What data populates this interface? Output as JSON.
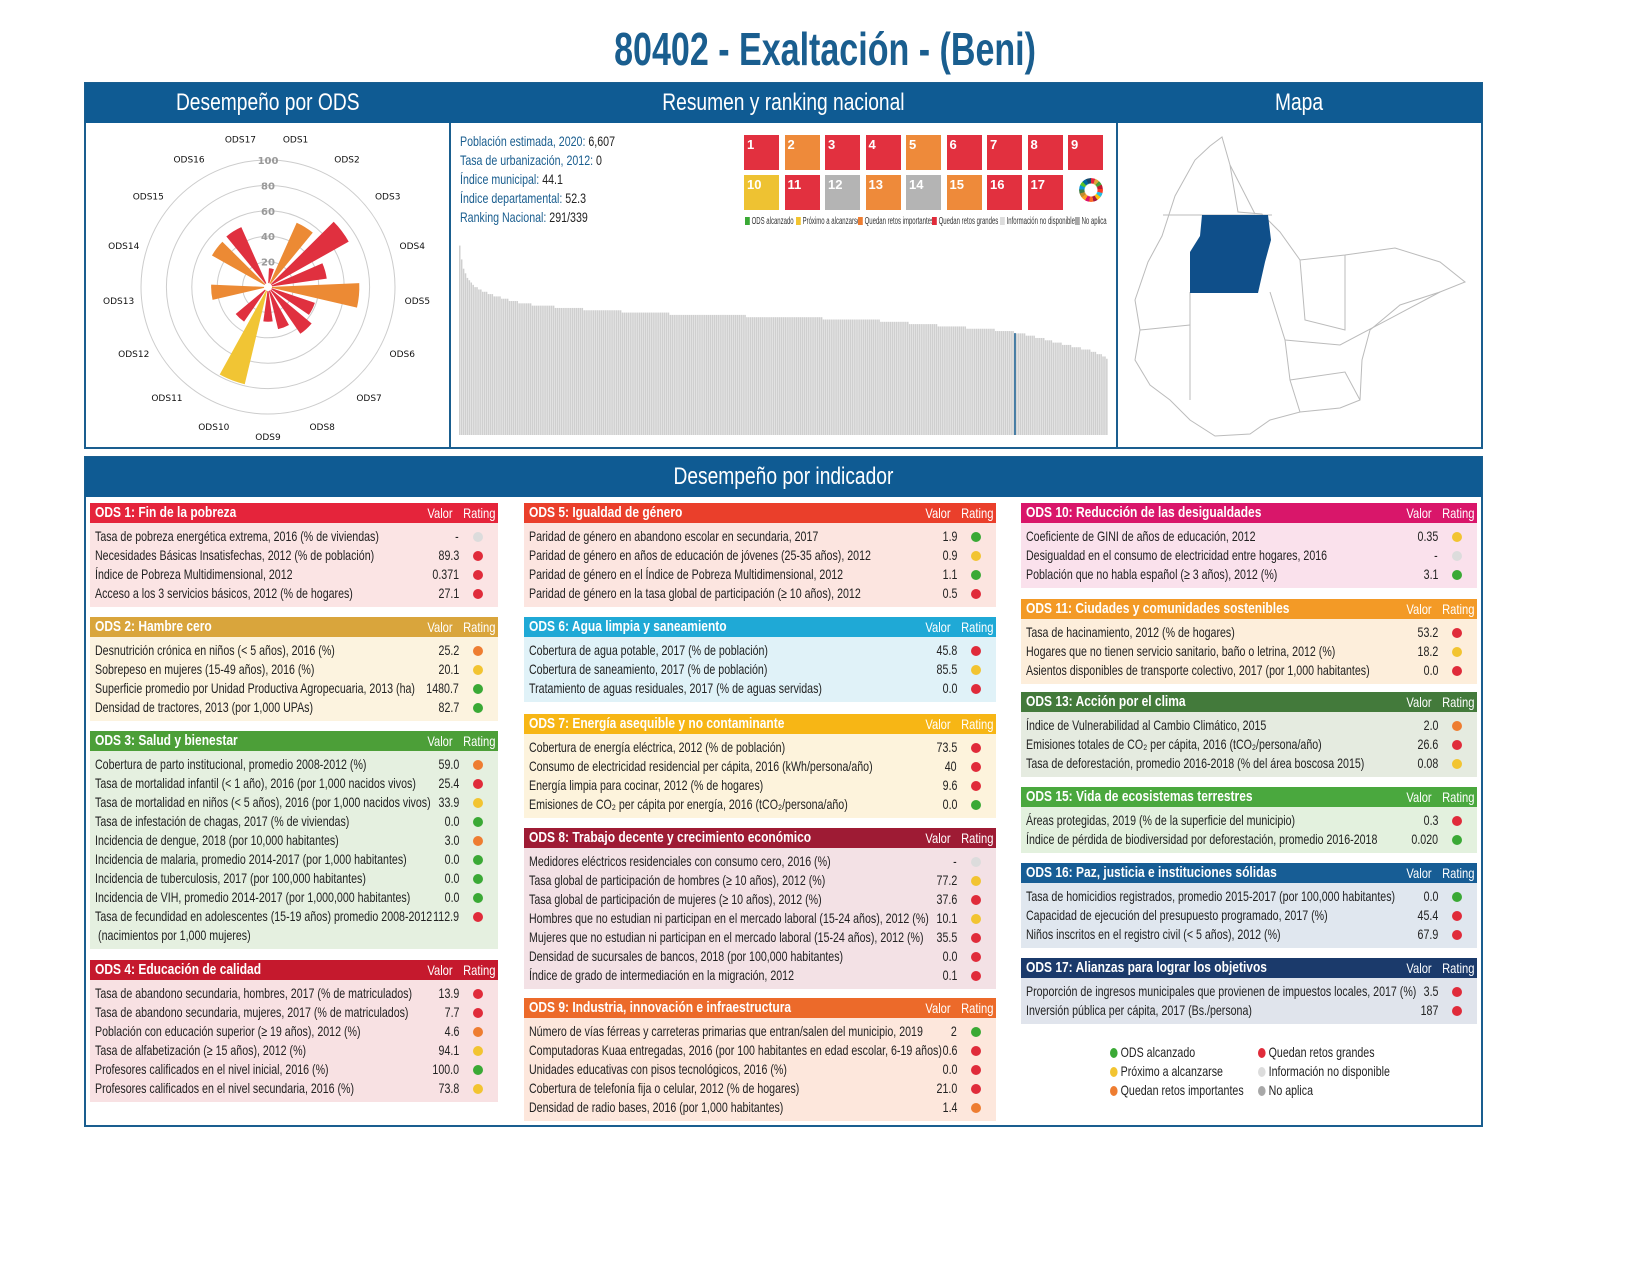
{
  "title": "80402 - Exaltación - (Beni)",
  "panels": {
    "ods": "Desempeño por ODS",
    "summary": "Resumen y ranking nacional",
    "map": "Mapa",
    "indicators": "Desempeño por indicador"
  },
  "summary": [
    {
      "label": "Población estimada, 2020:",
      "value": "6,607"
    },
    {
      "label": "Tasa de urbanización, 2012:",
      "value": "0"
    },
    {
      "label": "Índice municipal:",
      "value": "44.1"
    },
    {
      "label": "Índice departamental:",
      "value": "52.3"
    },
    {
      "label": "Ranking Nacional:",
      "value": "291/339"
    }
  ],
  "rating_colors": {
    "g": "#3aa935",
    "y": "#f2c431",
    "o": "#ee7d31",
    "r": "#e02b3a",
    "n": "#dcdcdc",
    "a": "#a8a8a8"
  },
  "ods_icons": [
    {
      "n": "1",
      "color": "#e2303f"
    },
    {
      "n": "2",
      "color": "#ee8a3a"
    },
    {
      "n": "3",
      "color": "#e2303f"
    },
    {
      "n": "4",
      "color": "#e2303f"
    },
    {
      "n": "5",
      "color": "#ee8a3a"
    },
    {
      "n": "6",
      "color": "#e2303f"
    },
    {
      "n": "7",
      "color": "#e2303f"
    },
    {
      "n": "8",
      "color": "#e2303f"
    },
    {
      "n": "9",
      "color": "#e2303f"
    },
    {
      "n": "10",
      "color": "#eec232"
    },
    {
      "n": "11",
      "color": "#e2303f"
    },
    {
      "n": "12",
      "color": "#b4b4b4"
    },
    {
      "n": "13",
      "color": "#ee8a3a"
    },
    {
      "n": "14",
      "color": "#b4b4b4"
    },
    {
      "n": "15",
      "color": "#ee8a3a"
    },
    {
      "n": "16",
      "color": "#e2303f"
    },
    {
      "n": "17",
      "color": "#e2303f"
    }
  ],
  "icon_legend": [
    {
      "label": "ODS alcanzado",
      "r": "g"
    },
    {
      "label": "Próximo a alcanzarse",
      "r": "y"
    },
    {
      "label": "Quedan retos importantes",
      "r": "o"
    },
    {
      "label": "Quedan retos grandes",
      "r": "r"
    },
    {
      "label": "Información no disponible",
      "r": "n"
    },
    {
      "label": "No aplica",
      "r": "a"
    }
  ],
  "chart_data": [
    {
      "type": "polar-bar",
      "categories": [
        "ODS1",
        "ODS2",
        "ODS3",
        "ODS4",
        "ODS5",
        "ODS6",
        "ODS7",
        "ODS8",
        "ODS9",
        "ODS10",
        "ODS11",
        "ODS12",
        "ODS13",
        "ODS14",
        "ODS15",
        "ODS16",
        "ODS17"
      ],
      "values": [
        12,
        54,
        72,
        45,
        71,
        37,
        43,
        32,
        25,
        78,
        31,
        0,
        43,
        0,
        49,
        50,
        0
      ],
      "ratings": [
        "r",
        "o",
        "r",
        "r",
        "o",
        "r",
        "r",
        "r",
        "r",
        "y",
        "r",
        "a",
        "o",
        "n",
        "o",
        "r",
        "r"
      ],
      "rticks": [
        20,
        40,
        60,
        80,
        100
      ],
      "rlim": [
        0,
        100
      ],
      "grid": true
    },
    {
      "type": "bar",
      "title": "",
      "highlight_rank": 291,
      "ylim": [
        0,
        100
      ],
      "values": [
        82,
        76,
        72,
        70,
        68,
        67,
        66,
        65,
        64,
        64,
        63,
        63,
        62,
        62,
        62,
        61,
        61,
        61,
        60,
        60,
        60,
        60,
        59,
        59,
        59,
        59,
        58,
        58,
        58,
        58,
        58,
        57,
        57,
        57,
        57,
        57,
        57,
        57,
        56,
        56,
        56,
        56,
        56,
        56,
        56,
        56,
        56,
        56,
        56,
        56,
        55,
        55,
        55,
        55,
        55,
        55,
        55,
        55,
        55,
        55,
        55,
        55,
        55,
        55,
        55,
        54,
        54,
        54,
        54,
        54,
        54,
        54,
        54,
        54,
        54,
        54,
        54,
        54,
        54,
        54,
        54,
        54,
        54,
        54,
        54,
        53,
        53,
        53,
        53,
        53,
        53,
        53,
        53,
        53,
        53,
        53,
        53,
        53,
        53,
        53,
        53,
        53,
        53,
        53,
        53,
        53,
        53,
        53,
        53,
        53,
        52,
        52,
        52,
        52,
        52,
        52,
        52,
        52,
        52,
        52,
        52,
        52,
        52,
        52,
        52,
        52,
        52,
        52,
        52,
        52,
        52,
        52,
        52,
        52,
        52,
        52,
        52,
        52,
        52,
        52,
        52,
        52,
        52,
        52,
        52,
        52,
        52,
        52,
        52,
        52,
        51,
        51,
        51,
        51,
        51,
        51,
        51,
        51,
        51,
        51,
        51,
        51,
        51,
        51,
        51,
        51,
        51,
        51,
        51,
        51,
        51,
        51,
        51,
        51,
        51,
        51,
        51,
        51,
        51,
        51,
        51,
        51,
        51,
        51,
        51,
        51,
        51,
        51,
        51,
        51,
        50,
        50,
        50,
        50,
        50,
        50,
        50,
        50,
        50,
        50,
        50,
        50,
        50,
        50,
        50,
        50,
        50,
        50,
        50,
        50,
        50,
        50,
        50,
        50,
        50,
        50,
        50,
        50,
        50,
        50,
        49,
        49,
        49,
        49,
        49,
        49,
        49,
        49,
        49,
        49,
        49,
        49,
        49,
        49,
        49,
        48,
        48,
        48,
        48,
        48,
        48,
        48,
        48,
        48,
        48,
        48,
        48,
        48,
        48,
        48,
        47,
        47,
        47,
        47,
        47,
        47,
        47,
        47,
        47,
        47,
        47,
        47,
        47,
        47,
        47,
        46,
        46,
        46,
        46,
        46,
        46,
        46,
        46,
        46,
        46,
        46,
        46,
        46,
        46,
        46,
        45,
        45,
        45,
        45,
        45,
        45,
        45,
        45,
        45,
        45,
        44.1,
        44,
        44,
        44,
        44,
        44,
        43,
        43,
        43,
        43,
        43,
        42,
        42,
        42,
        42,
        42,
        41,
        41,
        41,
        41,
        40,
        40,
        40,
        40,
        40,
        39,
        39,
        39,
        39,
        39,
        38,
        38,
        38,
        38,
        38,
        37,
        37,
        37,
        37,
        37,
        36,
        36,
        36,
        35,
        35,
        35,
        34,
        34,
        33
      ]
    }
  ],
  "table_headers": {
    "value": "Valor",
    "rating": "Rating"
  },
  "sections": [
    {
      "title": "ODS 1: Fin de la pobreza",
      "color": "#e5243b",
      "bg": "#fbe4e4",
      "rows": [
        {
          "label": "Tasa de pobreza energética extrema, 2016 (% de viviendas)",
          "value": "-",
          "r": "n"
        },
        {
          "label": "Necesidades Básicas Insatisfechas, 2012 (% de población)",
          "value": "89.3",
          "r": "r"
        },
        {
          "label": "Índice de Pobreza Multidimensional, 2012",
          "value": "0.371",
          "r": "r"
        },
        {
          "label": "Acceso a los 3 servicios básicos, 2012 (% de hogares)",
          "value": "27.1",
          "r": "r"
        }
      ]
    },
    {
      "title": "ODS 2: Hambre cero",
      "color": "#d9a53c",
      "bg": "#fcf3df",
      "rows": [
        {
          "label": "Desnutrición crónica en niños (< 5 años), 2016 (%)",
          "value": "25.2",
          "r": "o"
        },
        {
          "label": "Sobrepeso en mujeres (15-49 años), 2016 (%)",
          "value": "20.1",
          "r": "y"
        },
        {
          "label": "Superficie promedio por Unidad Productiva Agropecuaria, 2013 (ha)",
          "value": "1480.7",
          "r": "g"
        },
        {
          "label": "Densidad de tractores, 2013 (por 1,000 UPAs)",
          "value": "82.7",
          "r": "g"
        }
      ]
    },
    {
      "title": "ODS 3: Salud y bienestar",
      "color": "#4c9f38",
      "bg": "#e5f0e0",
      "rows": [
        {
          "label": "Cobertura de parto institucional, promedio 2008-2012 (%)",
          "value": "59.0",
          "r": "o"
        },
        {
          "label": "Tasa de mortalidad infantil (< 1 año), 2016 (por 1,000 nacidos vivos)",
          "value": "25.4",
          "r": "r"
        },
        {
          "label": "Tasa de mortalidad en niños (< 5 años), 2016 (por 1,000 nacidos vivos)",
          "value": "33.9",
          "r": "y"
        },
        {
          "label": "Tasa de infestación de chagas, 2017 (% de viviendas)",
          "value": "0.0",
          "r": "g"
        },
        {
          "label": "Incidencia de dengue, 2018 (por 10,000 habitantes)",
          "value": "3.0",
          "r": "o"
        },
        {
          "label": "Incidencia de malaria, promedio 2014-2017 (por 1,000 habitantes)",
          "value": "0.0",
          "r": "g"
        },
        {
          "label": "Incidencia de tuberculosis, 2017 (por 100,000 habitantes)",
          "value": "0.0",
          "r": "g"
        },
        {
          "label": "Incidencia de VIH, promedio 2014-2017 (por 1,000,000 habitantes)",
          "value": "0.0",
          "r": "g"
        },
        {
          "label": "Tasa de fecundidad en adolescentes (15-19 años) promedio 2008-2012",
          "label2": "(nacimientos por 1,000 mujeres)",
          "value": "112.9",
          "r": "r"
        }
      ]
    },
    {
      "title": "ODS 4: Educación de calidad",
      "color": "#c5192d",
      "bg": "#f8e1e3",
      "rows": [
        {
          "label": "Tasa de abandono secundaria, hombres, 2017 (% de matriculados)",
          "value": "13.9",
          "r": "r"
        },
        {
          "label": "Tasa de abandono secundaria, mujeres, 2017 (% de matriculados)",
          "value": "7.7",
          "r": "r"
        },
        {
          "label": "Población con educación superior (≥ 19 años), 2012 (%)",
          "value": "4.6",
          "r": "o"
        },
        {
          "label": "Tasa de alfabetización (≥ 15 años), 2012 (%)",
          "value": "94.1",
          "r": "y"
        },
        {
          "label": "Profesores calificados en el nivel inicial, 2016 (%)",
          "value": "100.0",
          "r": "g"
        },
        {
          "label": "Profesores calificados en el nivel secundaria, 2016 (%)",
          "value": "73.8",
          "r": "y"
        }
      ]
    },
    {
      "title": "ODS 5: Igualdad de género",
      "color": "#ea3f2b",
      "bg": "#fce5e0",
      "rows": [
        {
          "label": "Paridad de género en abandono escolar en secundaria, 2017",
          "value": "1.9",
          "r": "g"
        },
        {
          "label": "Paridad de género en años de educación de jóvenes (25-35 años), 2012",
          "value": "0.9",
          "r": "y"
        },
        {
          "label": "Paridad de género en el Índice de Pobreza Multidimensional, 2012",
          "value": "1.1",
          "r": "g"
        },
        {
          "label": "Paridad de género en la tasa global de participación (≥ 10 años), 2012",
          "value": "0.5",
          "r": "r"
        }
      ]
    },
    {
      "title": "ODS 6: Agua limpia y saneamiento",
      "color": "#1fa9d6",
      "bg": "#e0f2f8",
      "rows": [
        {
          "label": "Cobertura de agua potable, 2017 (% de población)",
          "value": "45.8",
          "r": "r"
        },
        {
          "label": "Cobertura de saneamiento, 2017 (% de población)",
          "value": "85.5",
          "r": "y"
        },
        {
          "label": "Tratamiento de aguas residuales, 2017 (% de aguas servidas)",
          "value": "0.0",
          "r": "r"
        }
      ]
    },
    {
      "title": "ODS 7: Energía asequible y no contaminante",
      "color": "#f7b615",
      "bg": "#fdf3dc",
      "rows": [
        {
          "label": "Cobertura de energía eléctrica, 2012 (% de población)",
          "value": "73.5",
          "r": "r"
        },
        {
          "label": "Consumo de electricidad residencial per cápita, 2016 (kWh/persona/año)",
          "value": "40",
          "r": "r"
        },
        {
          "label": "Energía limpia para cocinar, 2012 (% de hogares)",
          "value": "9.6",
          "r": "r"
        },
        {
          "label": "Emisiones de CO₂ per cápita por energía, 2016 (tCO₂/persona/año)",
          "value": "0.0",
          "r": "g"
        }
      ]
    },
    {
      "title": "ODS 8: Trabajo decente y crecimiento económico",
      "color": "#9e1b34",
      "bg": "#f3e1e5",
      "rows": [
        {
          "label": "Medidores eléctricos residenciales con consumo cero, 2016 (%)",
          "value": "-",
          "r": "n"
        },
        {
          "label": "Tasa global de participación de hombres (≥ 10 años), 2012 (%)",
          "value": "77.2",
          "r": "y"
        },
        {
          "label": "Tasa global de participación de mujeres (≥ 10 años), 2012 (%)",
          "value": "37.6",
          "r": "r"
        },
        {
          "label": "Hombres que no estudian ni participan en el mercado laboral (15-24 años), 2012 (%)",
          "value": "10.1",
          "r": "y"
        },
        {
          "label": "Mujeres que no estudian ni participan en el mercado laboral (15-24 años), 2012 (%)",
          "value": "35.5",
          "r": "r"
        },
        {
          "label": "Densidad de sucursales de bancos, 2018 (por 100,000 habitantes)",
          "value": "0.0",
          "r": "r"
        },
        {
          "label": "Índice de grado de intermediación en la migración, 2012",
          "value": "0.1",
          "r": "r"
        }
      ]
    },
    {
      "title": "ODS 9: Industria, innovación e infraestructura",
      "color": "#ec6a2a",
      "bg": "#fde7dc",
      "rows": [
        {
          "label": "Número de vías férreas y carreteras primarias que entran/salen del municipio, 2019",
          "value": "2",
          "r": "g"
        },
        {
          "label": "Computadoras Kuaa entregadas, 2016 (por 100 habitantes en edad escolar, 6-19 años)",
          "value": "0.6",
          "r": "r"
        },
        {
          "label": "Unidades educativas con pisos tecnológicos, 2016 (%)",
          "value": "0.0",
          "r": "r"
        },
        {
          "label": "Cobertura de telefonía fija o celular, 2012 (% de hogares)",
          "value": "21.0",
          "r": "r"
        },
        {
          "label": "Densidad de radio bases, 2016 (por 1,000 habitantes)",
          "value": "1.4",
          "r": "o"
        }
      ]
    },
    {
      "title": "ODS 10: Reducción de las desigualdades",
      "color": "#d9166a",
      "bg": "#fae1ec",
      "rows": [
        {
          "label": "Coeficiente de GINI de años de educación, 2012",
          "value": "0.35",
          "r": "y"
        },
        {
          "label": "Desigualdad en el consumo de electricidad entre hogares, 2016",
          "value": "-",
          "r": "n"
        },
        {
          "label": "Población que no habla español (≥ 3 años), 2012 (%)",
          "value": "3.1",
          "r": "g"
        }
      ]
    },
    {
      "title": "ODS 11: Ciudades y comunidades sostenibles",
      "color": "#f39a26",
      "bg": "#fdeedb",
      "rows": [
        {
          "label": "Tasa de hacinamiento, 2012 (% de hogares)",
          "value": "53.2",
          "r": "r"
        },
        {
          "label": "Hogares que no tienen servicio sanitario, baño o letrina, 2012 (%)",
          "value": "18.2",
          "r": "y"
        },
        {
          "label": "Asientos disponibles de transporte colectivo, 2017 (por 1,000 habitantes)",
          "value": "0.0",
          "r": "r"
        }
      ]
    },
    {
      "title": "ODS 13: Acción por el clima",
      "color": "#437a3b",
      "bg": "#e5ebe0",
      "rows": [
        {
          "label": "Índice de Vulnerabilidad al Cambio Climático, 2015",
          "value": "2.0",
          "r": "o"
        },
        {
          "label": "Emisiones totales de CO₂ per cápita, 2016 (tCO₂/persona/año)",
          "value": "26.6",
          "r": "r"
        },
        {
          "label": "Tasa de deforestación, promedio 2016-2018 (% del área boscosa 2015)",
          "value": "0.08",
          "r": "y"
        }
      ]
    },
    {
      "title": "ODS 15: Vida de ecosistemas terrestres",
      "color": "#4aa83e",
      "bg": "#e3f1de",
      "rows": [
        {
          "label": "Áreas protegidas, 2019 (% de la superficie del municipio)",
          "value": "0.3",
          "r": "r"
        },
        {
          "label": "Índice de pérdida de biodiversidad por deforestación, promedio 2016-2018",
          "value": "0.020",
          "r": "g"
        }
      ]
    },
    {
      "title": "ODS 16: Paz, justicia e instituciones sólidas",
      "color": "#175d95",
      "bg": "#e0e7ef",
      "rows": [
        {
          "label": "Tasa de homicidios registrados, promedio 2015-2017 (por 100,000 habitantes)",
          "value": "0.0",
          "r": "g"
        },
        {
          "label": "Capacidad de ejecución del presupuesto programado, 2017 (%)",
          "value": "45.4",
          "r": "r"
        },
        {
          "label": "Niños inscritos en el registro civil (< 5 años), 2012 (%)",
          "value": "67.9",
          "r": "r"
        }
      ]
    },
    {
      "title": "ODS 17: Alianzas para lograr los objetivos",
      "color": "#1b3a6b",
      "bg": "#e0e4ec",
      "rows": [
        {
          "label": "Proporción de ingresos municipales que provienen de impuestos locales, 2017 (%)",
          "value": "3.5",
          "r": "r"
        },
        {
          "label": "Inversión pública per cápita, 2017 (Bs./persona)",
          "value": "187",
          "r": "r"
        }
      ]
    }
  ]
}
